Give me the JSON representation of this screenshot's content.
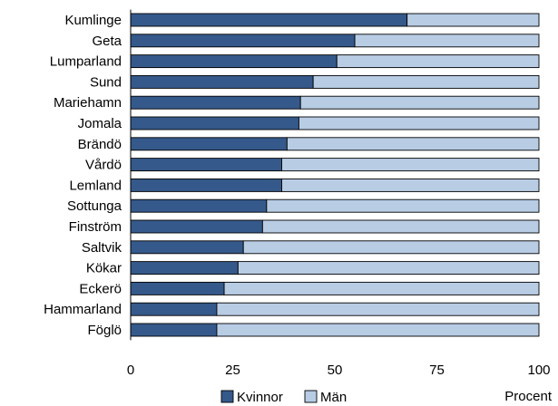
{
  "chart_data": {
    "type": "bar",
    "orientation": "horizontal",
    "stacked": true,
    "categories": [
      "Kumlinge",
      "Geta",
      "Lumparland",
      "Sund",
      "Mariehamn",
      "Jomala",
      "Brändö",
      "Vårdö",
      "Lemland",
      "Sottunga",
      "Finström",
      "Saltvik",
      "Kökar",
      "Eckerö",
      "Hammarland",
      "Föglö"
    ],
    "series": [
      {
        "name": "Kvinnor",
        "color": "#35598a",
        "values": [
          67.7,
          54.9,
          50.5,
          44.7,
          41.6,
          41.2,
          38.3,
          37.0,
          37.0,
          33.3,
          32.3,
          27.6,
          26.3,
          22.9,
          21.1,
          21.1
        ]
      },
      {
        "name": "Män",
        "color": "#b8cce4",
        "values": [
          32.3,
          45.1,
          49.5,
          55.3,
          58.4,
          58.8,
          61.7,
          63.0,
          63.0,
          66.7,
          67.7,
          72.4,
          73.7,
          77.1,
          78.9,
          78.9
        ]
      }
    ],
    "xlim": [
      0,
      100
    ],
    "xticks": [
      0,
      25,
      50,
      75,
      100
    ],
    "xlabel": "Procent",
    "ylabel": "",
    "title": "",
    "legend_position": "bottom",
    "grid": false
  }
}
